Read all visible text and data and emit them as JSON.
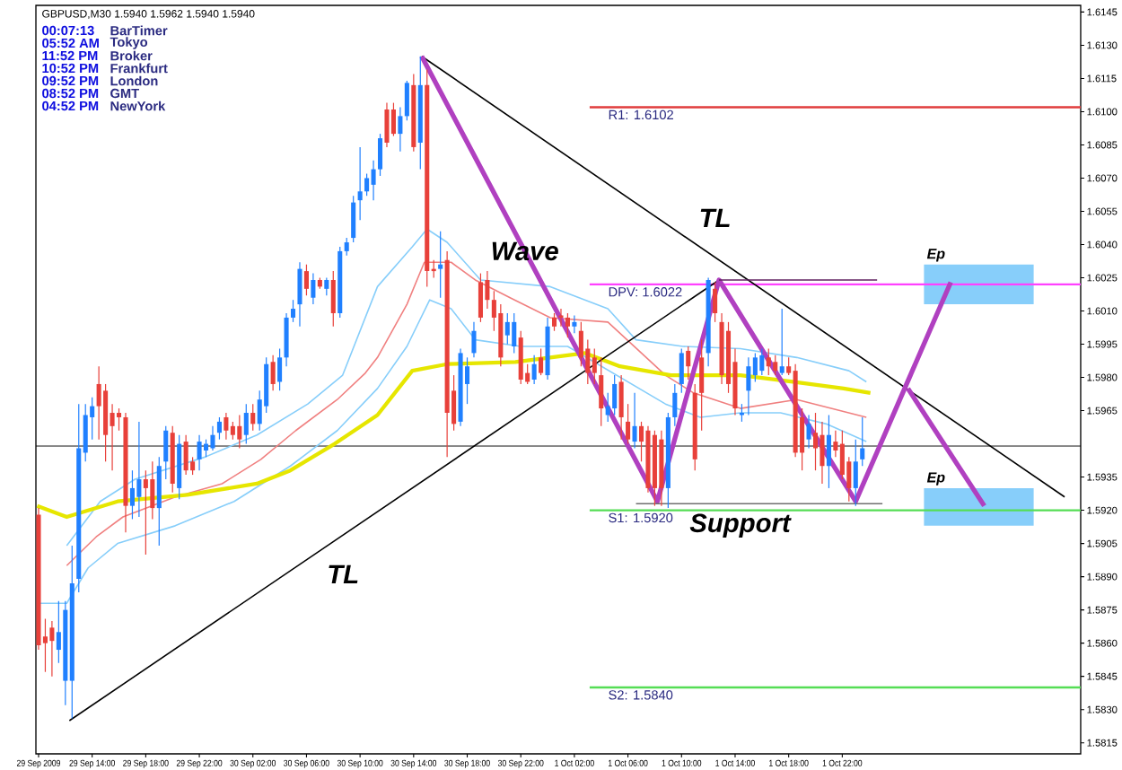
{
  "chart_data": {
    "type": "candlestick",
    "title": "GBPUSD,M30 1.5940 1.5962 1.5940 1.5940",
    "x": [
      "2009-09-29T10:00",
      "2009-09-29T10:30",
      "2009-09-29T11:00",
      "2009-09-29T11:30",
      "2009-09-29T12:00",
      "2009-09-29T12:30",
      "2009-09-29T13:00",
      "2009-09-29T13:30",
      "2009-09-29T14:00",
      "2009-09-29T14:30",
      "2009-09-29T15:00",
      "2009-09-29T15:30",
      "2009-09-29T16:00",
      "2009-09-29T16:30",
      "2009-09-29T17:00",
      "2009-09-29T17:30",
      "2009-09-29T18:00",
      "2009-09-29T18:30",
      "2009-09-29T19:00",
      "2009-09-29T19:30",
      "2009-09-29T20:00",
      "2009-09-29T20:30",
      "2009-09-29T21:00",
      "2009-09-29T21:30",
      "2009-09-29T22:00",
      "2009-09-29T22:30",
      "2009-09-29T23:00",
      "2009-09-29T23:30",
      "2009-09-30T00:00",
      "2009-09-30T00:30",
      "2009-09-30T01:00",
      "2009-09-30T01:30",
      "2009-09-30T02:00",
      "2009-09-30T02:30",
      "2009-09-30T03:00",
      "2009-09-30T03:30",
      "2009-09-30T04:00",
      "2009-09-30T04:30",
      "2009-09-30T05:00",
      "2009-09-30T05:30",
      "2009-09-30T06:00",
      "2009-09-30T06:30",
      "2009-09-30T07:00",
      "2009-09-30T07:30",
      "2009-09-30T08:00",
      "2009-09-30T08:30",
      "2009-09-30T09:00",
      "2009-09-30T09:30",
      "2009-09-30T10:00",
      "2009-09-30T10:30",
      "2009-09-30T11:00",
      "2009-09-30T11:30",
      "2009-09-30T12:00",
      "2009-09-30T12:30",
      "2009-09-30T13:00",
      "2009-09-30T13:30",
      "2009-09-30T14:00",
      "2009-09-30T14:30",
      "2009-09-30T15:00",
      "2009-09-30T15:30",
      "2009-09-30T16:00",
      "2009-09-30T16:30",
      "2009-09-30T17:00",
      "2009-09-30T17:30",
      "2009-09-30T18:00",
      "2009-09-30T18:30",
      "2009-09-30T19:00",
      "2009-09-30T19:30",
      "2009-09-30T20:00",
      "2009-09-30T20:30",
      "2009-09-30T21:00",
      "2009-09-30T21:30",
      "2009-09-30T22:00",
      "2009-09-30T22:30",
      "2009-09-30T23:00",
      "2009-09-30T23:30",
      "2009-10-01T00:00",
      "2009-10-01T00:30",
      "2009-10-01T01:00",
      "2009-10-01T01:30",
      "2009-10-01T02:00",
      "2009-10-01T02:30",
      "2009-10-01T03:00",
      "2009-10-01T03:30",
      "2009-10-01T04:00",
      "2009-10-01T04:30",
      "2009-10-01T05:00",
      "2009-10-01T05:30",
      "2009-10-01T06:00",
      "2009-10-01T06:30",
      "2009-10-01T07:00",
      "2009-10-01T07:30",
      "2009-10-01T08:00",
      "2009-10-01T08:30",
      "2009-10-01T09:00",
      "2009-10-01T09:30",
      "2009-10-01T10:00",
      "2009-10-01T10:30",
      "2009-10-01T11:00",
      "2009-10-01T11:30",
      "2009-10-01T12:00",
      "2009-10-01T12:30",
      "2009-10-01T13:00",
      "2009-10-01T13:30",
      "2009-10-01T14:00",
      "2009-10-01T14:30",
      "2009-10-01T15:00",
      "2009-10-01T15:30",
      "2009-10-01T16:00",
      "2009-10-01T16:30",
      "2009-10-01T17:00",
      "2009-10-01T17:30",
      "2009-10-01T18:00",
      "2009-10-01T18:30",
      "2009-10-01T19:00",
      "2009-10-01T19:30",
      "2009-10-01T20:00",
      "2009-10-01T20:30",
      "2009-10-01T21:00",
      "2009-10-01T21:30",
      "2009-10-01T22:00",
      "2009-10-01T22:30",
      "2009-10-01T23:00",
      "2009-10-01T23:30"
    ],
    "ohlc": [
      [
        1.5918,
        1.5921,
        1.5857,
        1.5859
      ],
      [
        1.5863,
        1.5871,
        1.5847,
        1.586
      ],
      [
        1.5867,
        1.587,
        1.5845,
        1.5861
      ],
      [
        1.5857,
        1.5879,
        1.5851,
        1.5865
      ],
      [
        1.5843,
        1.5879,
        1.5832,
        1.5875
      ],
      [
        1.5843,
        1.5904,
        1.5826,
        1.5887
      ],
      [
        1.5889,
        1.5968,
        1.5883,
        1.5948
      ],
      [
        1.5946,
        1.5968,
        1.5942,
        1.5963
      ],
      [
        1.5962,
        1.5971,
        1.5952,
        1.5967
      ],
      [
        1.5977,
        1.5985,
        1.5952,
        1.5967
      ],
      [
        1.5974,
        1.5977,
        1.5942,
        1.5954
      ],
      [
        1.5964,
        1.5968,
        1.5938,
        1.5958
      ],
      [
        1.5964,
        1.5966,
        1.5956,
        1.5962
      ],
      [
        1.5962,
        1.5964,
        1.591,
        1.5922
      ],
      [
        1.5922,
        1.5938,
        1.5916,
        1.593
      ],
      [
        1.5926,
        1.596,
        1.5917,
        1.5934
      ],
      [
        1.5934,
        1.5938,
        1.59,
        1.593
      ],
      [
        1.5934,
        1.5942,
        1.5916,
        1.5921
      ],
      [
        1.5921,
        1.5944,
        1.5904,
        1.594
      ],
      [
        1.5942,
        1.5958,
        1.5934,
        1.5956
      ],
      [
        1.5955,
        1.5958,
        1.5928,
        1.5932
      ],
      [
        1.593,
        1.5954,
        1.5925,
        1.595
      ],
      [
        1.5951,
        1.5954,
        1.5936,
        1.5938
      ],
      [
        1.5942,
        1.5944,
        1.5936,
        1.5938
      ],
      [
        1.5943,
        1.5954,
        1.5938,
        1.5951
      ],
      [
        1.5947,
        1.5952,
        1.5944,
        1.595
      ],
      [
        1.5948,
        1.5958,
        1.5947,
        1.5954
      ],
      [
        1.5955,
        1.5962,
        1.5952,
        1.596
      ],
      [
        1.5962,
        1.5964,
        1.5952,
        1.5956
      ],
      [
        1.5958,
        1.596,
        1.5952,
        1.5954
      ],
      [
        1.5958,
        1.5963,
        1.5948,
        1.5952
      ],
      [
        1.5954,
        1.5968,
        1.595,
        1.5964
      ],
      [
        1.5964,
        1.5968,
        1.5956,
        1.5959
      ],
      [
        1.5959,
        1.5974,
        1.5956,
        1.597
      ],
      [
        1.5967,
        1.5989,
        1.5964,
        1.5986
      ],
      [
        1.5987,
        1.599,
        1.5974,
        1.5977
      ],
      [
        1.5978,
        1.5993,
        1.5974,
        1.5989
      ],
      [
        1.5989,
        1.6009,
        1.5985,
        1.6007
      ],
      [
        1.6007,
        1.6015,
        1.6005,
        1.6011
      ],
      [
        1.6013,
        1.6032,
        1.6003,
        1.6029
      ],
      [
        1.6028,
        1.6031,
        1.6017,
        1.602
      ],
      [
        1.6016,
        1.6027,
        1.6013,
        1.6024
      ],
      [
        1.6024,
        1.6025,
        1.602,
        1.6021
      ],
      [
        1.602,
        1.6025,
        1.6017,
        1.6024
      ],
      [
        1.6024,
        1.6028,
        1.6003,
        1.6009
      ],
      [
        1.6009,
        1.6039,
        1.6007,
        1.6037
      ],
      [
        1.6037,
        1.6043,
        1.6035,
        1.6041
      ],
      [
        1.6043,
        1.6062,
        1.6041,
        1.6059
      ],
      [
        1.606,
        1.6084,
        1.6051,
        1.6064
      ],
      [
        1.6064,
        1.6072,
        1.6062,
        1.607
      ],
      [
        1.6067,
        1.6078,
        1.606,
        1.6074
      ],
      [
        1.6074,
        1.609,
        1.6071,
        1.6088
      ],
      [
        1.6101,
        1.6104,
        1.6084,
        1.6086
      ],
      [
        1.6101,
        1.6104,
        1.6089,
        1.609
      ],
      [
        1.609,
        1.6102,
        1.6082,
        1.6098
      ],
      [
        1.6098,
        1.6114,
        1.6096,
        1.6113
      ],
      [
        1.6112,
        1.6117,
        1.6082,
        1.6084
      ],
      [
        1.6086,
        1.6125,
        1.6074,
        1.6112
      ],
      [
        1.6112,
        1.6119,
        1.6021,
        1.6028
      ],
      [
        1.6029,
        1.6033,
        1.6025,
        1.6028
      ],
      [
        1.6029,
        1.6046,
        1.6016,
        1.6031
      ],
      [
        1.6033,
        1.6037,
        1.5944,
        1.5964
      ],
      [
        1.5974,
        1.5981,
        1.5956,
        1.5959
      ],
      [
        1.596,
        1.5993,
        1.5958,
        1.5991
      ],
      [
        1.5977,
        1.5989,
        1.5968,
        1.5985
      ],
      [
        1.5991,
        1.6005,
        1.5989,
        1.6001
      ],
      [
        1.6023,
        1.6027,
        1.6005,
        1.6007
      ],
      [
        1.6024,
        1.6028,
        1.6011,
        1.6015
      ],
      [
        1.6015,
        1.6019,
        1.6001,
        1.6007
      ],
      [
        1.6009,
        1.6013,
        1.5985,
        1.5989
      ],
      [
        1.5999,
        1.6009,
        1.5995,
        1.6005
      ],
      [
        1.5994,
        1.6009,
        1.5991,
        1.6005
      ],
      [
        1.5998,
        1.6001,
        1.5977,
        1.5979
      ],
      [
        1.5982,
        1.5986,
        1.5977,
        1.5978
      ],
      [
        1.5979,
        1.599,
        1.5977,
        1.5986
      ],
      [
        1.5989,
        1.5993,
        1.5981,
        1.5982
      ],
      [
        1.5981,
        1.6007,
        1.5979,
        1.6003
      ],
      [
        1.6007,
        1.6009,
        1.6001,
        1.6003
      ],
      [
        1.6008,
        1.6011,
        1.6003,
        1.6007
      ],
      [
        1.6007,
        1.6009,
        1.5998,
        1.6003
      ],
      [
        1.6003,
        1.6008,
        1.6,
        1.6005
      ],
      [
        1.6001,
        1.6005,
        1.5985,
        1.5989
      ],
      [
        1.5993,
        1.5997,
        1.5977,
        1.5982
      ],
      [
        1.5989,
        1.5993,
        1.5977,
        1.5982
      ],
      [
        1.5981,
        1.5989,
        1.5958,
        1.5966
      ],
      [
        1.5963,
        1.5973,
        1.596,
        1.5967
      ],
      [
        1.5966,
        1.5981,
        1.5963,
        1.5977
      ],
      [
        1.5978,
        1.5981,
        1.5952,
        1.5962
      ],
      [
        1.596,
        1.5968,
        1.595,
        1.5952
      ],
      [
        1.5951,
        1.5973,
        1.5948,
        1.5958
      ],
      [
        1.5958,
        1.596,
        1.5942,
        1.5951
      ],
      [
        1.5956,
        1.5958,
        1.5928,
        1.593
      ],
      [
        1.5954,
        1.5956,
        1.5922,
        1.593
      ],
      [
        1.5952,
        1.5956,
        1.5922,
        1.593
      ],
      [
        1.593,
        1.5964,
        1.5921,
        1.5962
      ],
      [
        1.5962,
        1.5977,
        1.5958,
        1.5973
      ],
      [
        1.5977,
        1.5993,
        1.5973,
        1.5991
      ],
      [
        1.5992,
        1.5994,
        1.5979,
        1.5985
      ],
      [
        1.5973,
        1.5977,
        1.5938,
        1.5943
      ],
      [
        1.5989,
        1.5997,
        1.5956,
        1.5973
      ],
      [
        1.5991,
        1.6025,
        1.5985,
        1.6024
      ],
      [
        1.602,
        1.6023,
        1.6005,
        1.6009
      ],
      [
        1.6005,
        1.6009,
        1.5977,
        1.5981
      ],
      [
        1.6001,
        1.6005,
        1.5973,
        1.5977
      ],
      [
        1.5987,
        1.5993,
        1.5963,
        1.5966
      ],
      [
        1.5963,
        1.5968,
        1.596,
        1.5964
      ],
      [
        1.5974,
        1.5989,
        1.5963,
        1.5985
      ],
      [
        1.5981,
        1.5991,
        1.5978,
        1.5989
      ],
      [
        1.5983,
        1.5993,
        1.5981,
        1.599
      ],
      [
        1.5989,
        1.5993,
        1.5981,
        1.5985
      ],
      [
        1.5987,
        1.599,
        1.5981,
        1.5983
      ],
      [
        1.5982,
        1.6011,
        1.5981,
        1.5985
      ],
      [
        1.5985,
        1.5989,
        1.5981,
        1.5982
      ],
      [
        1.5983,
        1.5986,
        1.5944,
        1.5946
      ],
      [
        1.5962,
        1.5966,
        1.5938,
        1.5946
      ],
      [
        1.5952,
        1.5963,
        1.5948,
        1.5959
      ],
      [
        1.5955,
        1.5964,
        1.5938,
        1.5948
      ],
      [
        1.5954,
        1.596,
        1.5932,
        1.594
      ],
      [
        1.594,
        1.5963,
        1.593,
        1.5954
      ],
      [
        1.5951,
        1.5956,
        1.5944,
        1.5947
      ],
      [
        1.595,
        1.5956,
        1.5934,
        1.5936
      ],
      [
        1.5942,
        1.5944,
        1.5924,
        1.593
      ],
      [
        1.593,
        1.5952,
        1.5922,
        1.5942
      ],
      [
        1.5943,
        1.5962,
        1.594,
        1.5948
      ]
    ],
    "series": [
      {
        "type": "line",
        "color": "#87cefa",
        "x": [
          "2009-09-29T12:06",
          "2009-09-29T14:36",
          "2009-09-29T17:12",
          "2009-09-29T22:24",
          "2009-09-30T02:18",
          "2009-09-30T06:06",
          "2009-09-30T08:42",
          "2009-09-30T11:18",
          "2009-09-30T13:54",
          "2009-09-30T15:00",
          "2009-09-30T16:30",
          "2009-09-30T19:00",
          "2009-10-01T00:12",
          "2009-10-01T04:30",
          "2009-10-01T06:36",
          "2009-10-01T10:06",
          "2009-10-01T14:24",
          "2009-10-01T18:36",
          "2009-10-01T22:30",
          "2009-10-01T23:48"
        ],
        "values": [
          1.5904,
          1.5924,
          1.5934,
          1.5944,
          1.5954,
          1.5968,
          1.5981,
          1.6021,
          1.6039,
          1.6047,
          1.6041,
          1.6024,
          1.6021,
          1.6011,
          1.5997,
          1.5994,
          1.5993,
          1.5989,
          1.5983,
          1.5978
        ]
      },
      {
        "type": "line",
        "color": "#f08080",
        "x": [
          "2009-09-29T12:06",
          "2009-09-29T14:18",
          "2009-09-29T16:18",
          "2009-09-29T20:12",
          "2009-09-29T23:42",
          "2009-09-30T02:36",
          "2009-09-30T05:12",
          "2009-09-30T08:18",
          "2009-09-30T10:24",
          "2009-09-30T11:18",
          "2009-09-30T13:30",
          "2009-09-30T14:48",
          "2009-09-30T16:48",
          "2009-09-30T18:36",
          "2009-09-30T21:12",
          "2009-10-01T00:12",
          "2009-10-01T04:30",
          "2009-10-01T08:48",
          "2009-10-01T10:54",
          "2009-10-01T14:24",
          "2009-10-01T18:36",
          "2009-10-01T23:48"
        ],
        "values": [
          1.5895,
          1.5908,
          1.5917,
          1.5926,
          1.5932,
          1.5943,
          1.5956,
          1.597,
          1.5982,
          1.5989,
          1.6013,
          1.6032,
          1.6032,
          1.6024,
          1.6016,
          1.6007,
          1.6005,
          1.5981,
          1.5973,
          1.5966,
          1.597,
          1.5962
        ]
      },
      {
        "type": "line",
        "color": "#87cefa",
        "x": [
          "2009-09-29T09:54",
          "2009-09-29T12:06",
          "2009-09-29T13:42",
          "2009-09-29T15:54",
          "2009-09-29T20:12",
          "2009-09-30T00:36",
          "2009-09-30T04:48",
          "2009-09-30T08:18",
          "2009-09-30T11:18",
          "2009-09-30T13:30",
          "2009-09-30T15:12",
          "2009-09-30T16:48",
          "2009-09-30T18:36",
          "2009-09-30T22:00",
          "2009-10-01T01:30",
          "2009-10-01T08:48",
          "2009-10-01T11:24",
          "2009-10-01T14:24",
          "2009-10-01T17:24",
          "2009-10-01T20:48",
          "2009-10-01T23:48"
        ],
        "values": [
          1.5878,
          1.5878,
          1.5894,
          1.5905,
          1.5913,
          1.5924,
          1.594,
          1.5956,
          1.5975,
          1.5994,
          1.6015,
          1.6011,
          1.5997,
          1.5994,
          1.5994,
          1.5968,
          1.5962,
          1.5964,
          1.5964,
          1.5959,
          1.5951
        ]
      },
      {
        "type": "line",
        "color": "#e6e600",
        "x": [
          "2009-09-29T09:54",
          "2009-09-29T12:06",
          "2009-09-29T15:54",
          "2009-09-29T21:06",
          "2009-09-30T02:18",
          "2009-09-30T04:48",
          "2009-09-30T08:06",
          "2009-09-30T11:18",
          "2009-09-30T13:54",
          "2009-09-30T16:30",
          "2009-09-30T21:36",
          "2009-10-01T02:48",
          "2009-10-01T05:24",
          "2009-10-01T09:12",
          "2009-10-01T14:24",
          "2009-10-01T18:18",
          "2009-10-01T22:06",
          "2009-10-02T00:06"
        ],
        "values": [
          1.5922,
          1.5917,
          1.5924,
          1.5927,
          1.5932,
          1.5938,
          1.595,
          1.5963,
          1.5983,
          1.5986,
          1.5987,
          1.5991,
          1.5985,
          1.5981,
          1.5981,
          1.5978,
          1.5975,
          1.5973
        ]
      },
      {
        "type": "line",
        "color": "#000000",
        "x": [
          "2009-09-29T12:18",
          "2009-10-01T12:48"
        ],
        "values": [
          1.5825,
          1.6024
        ]
      },
      {
        "type": "line",
        "color": "#000000",
        "x": [
          "2009-09-30T14:36",
          "2009-10-02T14:36"
        ],
        "values": [
          1.6125,
          1.5926
        ]
      },
      {
        "type": "line",
        "color": "#b040c0",
        "x": [
          "2009-09-30T14:36",
          "2009-10-01T08:12",
          "2009-10-01T12:48",
          "2009-10-01T23:00",
          "2009-10-02T06:06"
        ],
        "values": [
          1.6125,
          1.5924,
          1.6024,
          1.5924,
          1.6023
        ]
      },
      {
        "type": "line",
        "color": "#b040c0",
        "x": [
          "2009-10-02T02:54",
          "2009-10-02T08:36"
        ],
        "values": [
          1.5975,
          1.5922
        ]
      },
      {
        "type": "line",
        "color": "#602060",
        "x": [
          "2009-10-01T12:48",
          "2009-10-02T00:36"
        ],
        "values": [
          1.6024,
          1.6024
        ]
      },
      {
        "type": "line",
        "color": "#707070",
        "x": [
          "2009-10-01T06:36",
          "2009-10-02T01:00"
        ],
        "values": [
          1.5923,
          1.5923
        ]
      }
    ],
    "ref_lines": [
      {
        "axis": "y",
        "value": 1.5949,
        "color": "#000000"
      },
      {
        "axis": "y",
        "value": 1.6102,
        "label": "R1: 1.6102",
        "color": "#e03c3c"
      },
      {
        "axis": "y",
        "value": 1.6022,
        "label": "DPV: 1.6022",
        "color": "#ff40ff"
      },
      {
        "axis": "y",
        "value": 1.592,
        "label": "S1: 1.5920",
        "color": "#55dd55"
      },
      {
        "axis": "y",
        "value": 1.584,
        "label": "S2: 1.5840",
        "color": "#55dd55"
      }
    ],
    "bands": [
      {
        "axis": "y",
        "from": 1.6013,
        "to": 1.6031,
        "label": "Ep",
        "color": "#87cefa"
      },
      {
        "axis": "y",
        "from": 1.5913,
        "to": 1.593,
        "label": "Ep",
        "color": "#87cefa"
      }
    ],
    "annotations": [
      "00:07:13",
      "BarTimer",
      "05:52 AM",
      "Tokyo",
      "11:52 PM",
      "Broker",
      "10:52 PM",
      "Frankfurt",
      "09:52 PM",
      "London",
      "08:52 PM",
      "GMT",
      "04:52 PM",
      "NewYork",
      "TL",
      "TL",
      "Support",
      {
        "text": "Wave",
        "x": "2009-09-30T22:18",
        "y": 1.6037
      }
    ],
    "xlim": [
      "2009-09-29T09:48",
      "2009-10-02T15:48"
    ],
    "ylim": [
      1.581,
      1.6148
    ],
    "xticks": [
      {
        "value": "2009-09-29T10:00",
        "label": "29 Sep 2009"
      },
      {
        "value": "2009-09-29T14:00",
        "label": "29 Sep 14:00"
      },
      {
        "value": "2009-09-29T18:00",
        "label": "29 Sep 18:00"
      },
      {
        "value": "2009-09-29T22:00",
        "label": "29 Sep 22:00"
      },
      {
        "value": "2009-09-30T02:00",
        "label": "30 Sep 02:00"
      },
      {
        "value": "2009-09-30T06:00",
        "label": "30 Sep 06:00"
      },
      {
        "value": "2009-09-30T10:00",
        "label": "30 Sep 10:00"
      },
      {
        "value": "2009-09-30T14:00",
        "label": "30 Sep 14:00"
      },
      {
        "value": "2009-09-30T18:00",
        "label": "30 Sep 18:00"
      },
      {
        "value": "2009-09-30T22:00",
        "label": "30 Sep 22:00"
      },
      {
        "value": "2009-10-01T02:00",
        "label": "1 Oct 02:00"
      },
      {
        "value": "2009-10-01T06:00",
        "label": "1 Oct 06:00"
      },
      {
        "value": "2009-10-01T10:00",
        "label": "1 Oct 10:00"
      },
      {
        "value": "2009-10-01T14:00",
        "label": "1 Oct 14:00"
      },
      {
        "value": "2009-10-01T18:00",
        "label": "1 Oct 18:00"
      },
      {
        "value": "2009-10-01T22:00",
        "label": "1 Oct 22:00"
      }
    ],
    "yticks": [
      {
        "value": 1.5815,
        "label": "1.5815"
      },
      {
        "value": 1.583,
        "label": "1.5830"
      },
      {
        "value": 1.5845,
        "label": "1.5845"
      },
      {
        "value": 1.586,
        "label": "1.5860"
      },
      {
        "value": 1.5875,
        "label": "1.5875"
      },
      {
        "value": 1.589,
        "label": "1.5890"
      },
      {
        "value": 1.5905,
        "label": "1.5905"
      },
      {
        "value": 1.592,
        "label": "1.5920"
      },
      {
        "value": 1.5935,
        "label": "1.5935"
      },
      {
        "value": 1.5965,
        "label": "1.5965"
      },
      {
        "value": 1.598,
        "label": "1.5980"
      },
      {
        "value": 1.5995,
        "label": "1.5995"
      },
      {
        "value": 1.601,
        "label": "1.6010"
      },
      {
        "value": 1.6025,
        "label": "1.6025"
      },
      {
        "value": 1.604,
        "label": "1.6040"
      },
      {
        "value": 1.6055,
        "label": "1.6055"
      },
      {
        "value": 1.607,
        "label": "1.6070"
      },
      {
        "value": 1.6085,
        "label": "1.6085"
      },
      {
        "value": 1.61,
        "label": "1.6100"
      },
      {
        "value": 1.6115,
        "label": "1.6115"
      },
      {
        "value": 1.613,
        "label": "1.6130"
      },
      {
        "value": 1.6145,
        "label": "1.6145"
      }
    ]
  }
}
